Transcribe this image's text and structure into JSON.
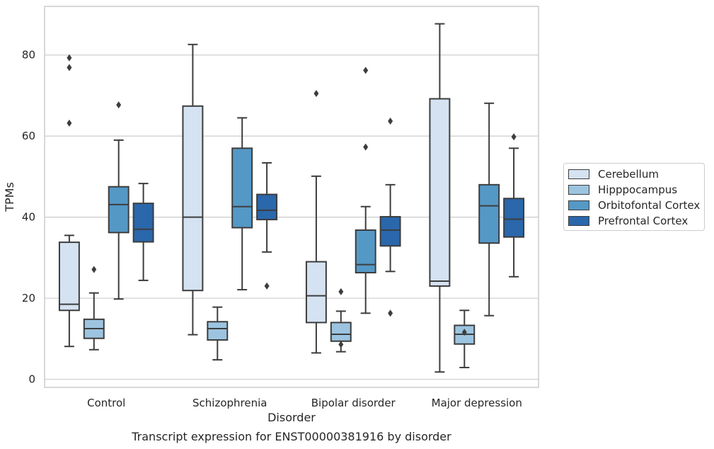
{
  "chart_data": {
    "type": "box",
    "title": "Transcript expression for ENST00000381916 by disorder",
    "xlabel": "Disorder",
    "ylabel": "TPMs",
    "ylim": [
      -2,
      92
    ],
    "yticks": [
      0,
      20,
      40,
      60,
      80
    ],
    "grid": "horizontal",
    "legend_position": "right",
    "categories": [
      "Control",
      "Schizophrenia",
      "Bipolar disorder",
      "Major depression"
    ],
    "series": [
      {
        "name": "Cerebellum",
        "color": "#d4e2f1",
        "boxes": [
          {
            "whisker_low": 8.1,
            "q1": 17.0,
            "median": 18.5,
            "q3": 33.8,
            "whisker_high": 35.5,
            "outliers": [
              63.2,
              76.9,
              79.3
            ]
          },
          {
            "whisker_low": 11.0,
            "q1": 21.9,
            "median": 40.0,
            "q3": 67.4,
            "whisker_high": 82.6,
            "outliers": []
          },
          {
            "whisker_low": 6.5,
            "q1": 14.0,
            "median": 20.6,
            "q3": 29.0,
            "whisker_high": 50.1,
            "outliers": [
              70.5
            ]
          },
          {
            "whisker_low": 1.8,
            "q1": 23.0,
            "median": 24.2,
            "q3": 69.2,
            "whisker_high": 87.7,
            "outliers": []
          }
        ]
      },
      {
        "name": "Hipppocampus",
        "color": "#9cc4e0",
        "boxes": [
          {
            "whisker_low": 7.3,
            "q1": 10.1,
            "median": 12.5,
            "q3": 14.8,
            "whisker_high": 21.3,
            "outliers": [
              27.1
            ]
          },
          {
            "whisker_low": 4.8,
            "q1": 9.7,
            "median": 12.5,
            "q3": 14.2,
            "whisker_high": 17.8,
            "outliers": []
          },
          {
            "whisker_low": 6.8,
            "q1": 9.4,
            "median": 11.1,
            "q3": 14.0,
            "whisker_high": 16.8,
            "outliers": [
              8.6,
              21.6
            ]
          },
          {
            "whisker_low": 2.9,
            "q1": 8.7,
            "median": 11.1,
            "q3": 13.3,
            "whisker_high": 17.0,
            "outliers": [
              11.6
            ]
          }
        ]
      },
      {
        "name": "Orbitofontal Cortex",
        "color": "#5498c6",
        "boxes": [
          {
            "whisker_low": 19.8,
            "q1": 36.2,
            "median": 43.1,
            "q3": 47.5,
            "whisker_high": 59.0,
            "outliers": [
              67.7
            ]
          },
          {
            "whisker_low": 22.1,
            "q1": 37.4,
            "median": 42.6,
            "q3": 57.0,
            "whisker_high": 64.5,
            "outliers": []
          },
          {
            "whisker_low": 16.3,
            "q1": 26.3,
            "median": 28.3,
            "q3": 36.8,
            "whisker_high": 42.6,
            "outliers": [
              57.3,
              76.2
            ]
          },
          {
            "whisker_low": 15.7,
            "q1": 33.6,
            "median": 42.8,
            "q3": 48.0,
            "whisker_high": 68.1,
            "outliers": []
          }
        ]
      },
      {
        "name": "Prefrontal Cortex",
        "color": "#2a67ab",
        "boxes": [
          {
            "whisker_low": 24.4,
            "q1": 33.9,
            "median": 37.0,
            "q3": 43.4,
            "whisker_high": 48.3,
            "outliers": []
          },
          {
            "whisker_low": 31.4,
            "q1": 39.4,
            "median": 41.7,
            "q3": 45.6,
            "whisker_high": 53.4,
            "outliers": [
              23.0
            ]
          },
          {
            "whisker_low": 26.6,
            "q1": 32.9,
            "median": 36.8,
            "q3": 40.1,
            "whisker_high": 48.0,
            "outliers": [
              16.3,
              63.7
            ]
          },
          {
            "whisker_low": 25.3,
            "q1": 35.1,
            "median": 39.5,
            "q3": 44.6,
            "whisker_high": 57.0,
            "outliers": [
              59.8
            ]
          }
        ]
      }
    ]
  }
}
